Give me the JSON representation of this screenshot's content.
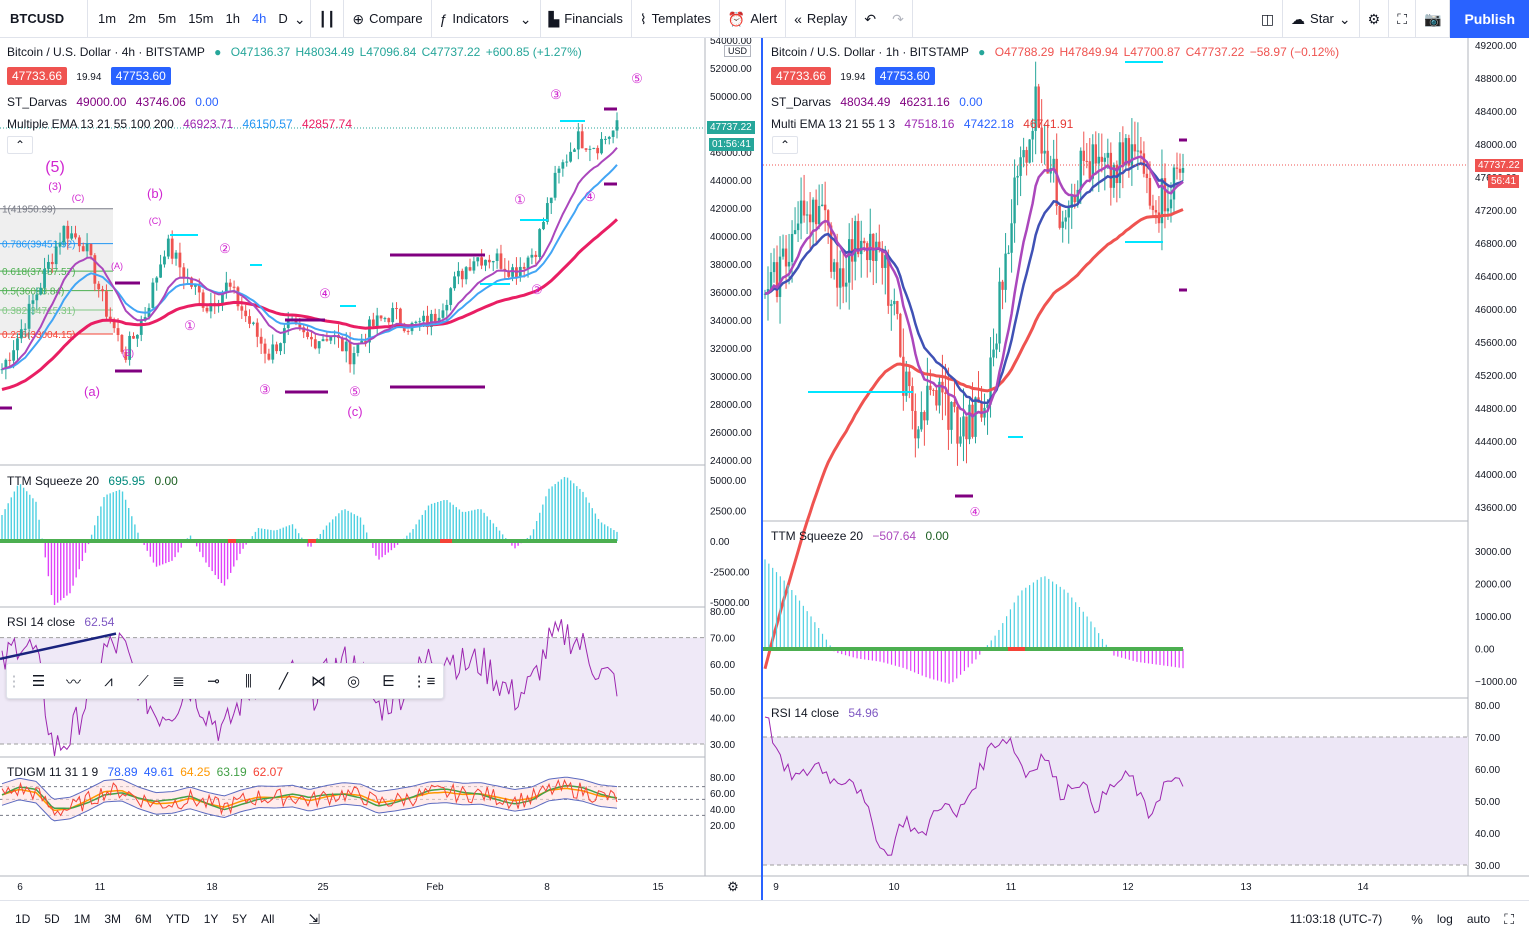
{
  "toolbar": {
    "symbol": "BTCUSD",
    "intervals": [
      "1m",
      "2m",
      "5m",
      "15m",
      "1h",
      "4h",
      "D"
    ],
    "active_interval": "4h",
    "compare": "Compare",
    "indicators": "Indicators",
    "financials": "Financials",
    "templates": "Templates",
    "alert": "Alert",
    "replay": "Replay",
    "star": "Star",
    "publish": "Publish"
  },
  "colors": {
    "up": "#26a69a",
    "down": "#ef5350",
    "accent": "#2962ff",
    "magenta": "#d026d0"
  },
  "left": {
    "title": "Bitcoin / U.S. Dollar · 4h · BITSTAMP",
    "ohlc": {
      "o": "O47136.37",
      "h": "H48034.49",
      "l": "L47096.84",
      "c": "C47737.22",
      "chg": "+600.85 (+1.27%)"
    },
    "bid": "47733.66",
    "spread": "19.94",
    "ask": "47753.60",
    "darvas": {
      "name": "ST_Darvas",
      "v1": "49000.00",
      "v2": "43746.06",
      "v3": "0.00"
    },
    "ema": {
      "name": "Multiple EMA 13 21 55 100 200",
      "v1": "46923.71",
      "v2": "46150.57",
      "v3": "42857.74"
    },
    "currency": "USD",
    "price_tag": "47737.22",
    "timer": "01:56:41",
    "yticks": [
      "54000.00",
      "52000.00",
      "50000.00",
      "48000.00",
      "46000.00",
      "44000.00",
      "42000.00",
      "40000.00",
      "38000.00",
      "36000.00",
      "34000.00",
      "32000.00",
      "30000.00",
      "28000.00",
      "26000.00",
      "24000.00"
    ],
    "fib": [
      "1(41950.99)",
      "0.786(39451.92)",
      "0.618(37487.57)",
      "0.5(36098.84)",
      "0.382(34715.31)",
      "0.236(33004.15)"
    ],
    "waves": [
      "(5)",
      "(3)",
      "(b)",
      "(c)",
      "(a)",
      "(A)",
      "(B)",
      "(C)",
      "①",
      "②",
      "③",
      "④",
      "⑤"
    ],
    "ttm": {
      "name": "TTM Squeeze 20",
      "v1": "695.95",
      "v2": "0.00",
      "yticks": [
        "5000.00",
        "2500.00",
        "0.00",
        "-2500.00",
        "-5000.00"
      ]
    },
    "rsi": {
      "name": "RSI 14 close",
      "v1": "62.54",
      "yticks": [
        "80.00",
        "70.00",
        "60.00",
        "50.00",
        "40.00",
        "30.00"
      ]
    },
    "tdi": {
      "name": "TDIGM 11 31 1 9",
      "v1": "78.89",
      "v2": "49.61",
      "v3": "64.25",
      "v4": "63.19",
      "v5": "62.07",
      "yticks": [
        "80.00",
        "60.00",
        "40.00",
        "20.00"
      ]
    },
    "xticks": [
      "6",
      "11",
      "18",
      "25",
      "Feb",
      "8",
      "15"
    ]
  },
  "right": {
    "title": "Bitcoin / U.S. Dollar · 1h · BITSTAMP",
    "ohlc": {
      "o": "O47788.29",
      "h": "H47849.94",
      "l": "L47700.87",
      "c": "C47737.22",
      "chg": "−58.97 (−0.12%)"
    },
    "bid": "47733.66",
    "spread": "19.94",
    "ask": "47753.60",
    "darvas": {
      "name": "ST_Darvas",
      "v1": "48034.49",
      "v2": "46231.16",
      "v3": "0.00"
    },
    "ema": {
      "name": "Multi EMA 13 21 55 1 3",
      "v1": "47518.16",
      "v2": "47422.18",
      "v3": "46741.91"
    },
    "price_tag": "47737.22",
    "timer": "56:41",
    "yticks": [
      "49200.00",
      "48800.00",
      "48400.00",
      "48000.00",
      "47600.00",
      "47200.00",
      "46800.00",
      "46400.00",
      "46000.00",
      "45600.00",
      "45200.00",
      "44800.00",
      "44400.00",
      "44000.00",
      "43600.00"
    ],
    "ttm": {
      "name": "TTM Squeeze 20",
      "v1": "−507.64",
      "v2": "0.00",
      "yticks": [
        "3000.00",
        "2000.00",
        "1000.00",
        "0.00",
        "−1000.00"
      ]
    },
    "rsi": {
      "name": "RSI 14 close",
      "v1": "54.96",
      "yticks": [
        "80.00",
        "70.00",
        "60.00",
        "50.00",
        "40.00",
        "30.00"
      ]
    },
    "xticks": [
      "9",
      "10",
      "11",
      "12",
      "13",
      "14"
    ]
  },
  "bottom": {
    "ranges": [
      "1D",
      "5D",
      "1M",
      "3M",
      "6M",
      "YTD",
      "1Y",
      "5Y",
      "All"
    ],
    "time": "11:03:18 (UTC-7)",
    "pct": "%",
    "log": "log",
    "auto": "auto"
  }
}
